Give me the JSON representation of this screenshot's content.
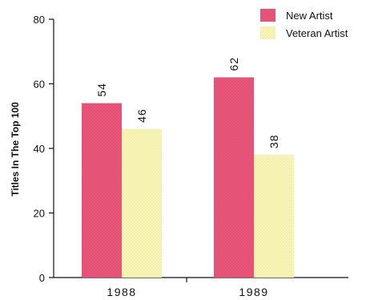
{
  "chart_data": {
    "type": "bar",
    "categories": [
      "1988",
      "1989"
    ],
    "series": [
      {
        "name": "New Artist",
        "values": [
          54,
          62
        ],
        "color": "#e8567a"
      },
      {
        "name": "Veteran Artist",
        "values": [
          46,
          38
        ],
        "color": "#f7f5b8"
      }
    ],
    "title": "",
    "xlabel": "",
    "ylabel": "Titles In The Top 100",
    "ylim": [
      0,
      80
    ],
    "yticks": [
      0,
      20,
      40,
      60,
      80
    ],
    "grid": false,
    "legend_position": "top-right",
    "data_labels": true
  }
}
